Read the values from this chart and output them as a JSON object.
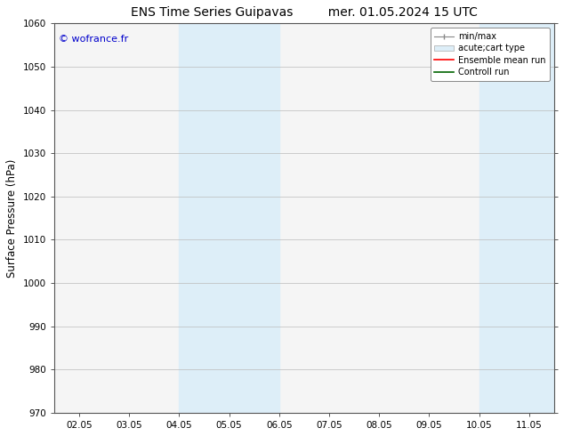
{
  "title_left": "ENS Time Series Guipavas",
  "title_right": "mer. 01.05.2024 15 UTC",
  "ylabel": "Surface Pressure (hPa)",
  "ylim": [
    970,
    1060
  ],
  "yticks": [
    970,
    980,
    990,
    1000,
    1010,
    1020,
    1030,
    1040,
    1050,
    1060
  ],
  "xtick_labels": [
    "02.05",
    "03.05",
    "04.05",
    "05.05",
    "06.05",
    "07.05",
    "08.05",
    "09.05",
    "10.05",
    "11.05"
  ],
  "n_xticks": 10,
  "shaded_regions": [
    {
      "xstart": 2,
      "xend": 3,
      "color": "#ddeef8"
    },
    {
      "xstart": 3,
      "xend": 4,
      "color": "#ddeef8"
    },
    {
      "xstart": 8,
      "xend": 9,
      "color": "#ddeef8"
    },
    {
      "xstart": 9,
      "xend": 9.5,
      "color": "#ddeef8"
    }
  ],
  "watermark": "© wofrance.fr",
  "watermark_color": "#0000cc",
  "bg_color": "#ffffff",
  "plot_bg_color": "#f5f5f5",
  "grid_color": "#bbbbbb",
  "spine_color": "#555555",
  "title_fontsize": 10,
  "tick_fontsize": 7.5,
  "ylabel_fontsize": 8.5,
  "legend_fontsize": 7
}
